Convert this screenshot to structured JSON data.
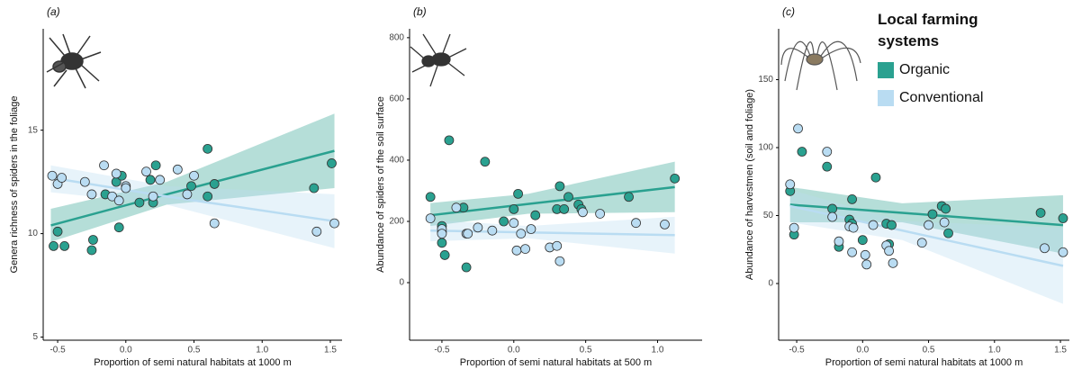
{
  "chart_data": [
    {
      "type": "scatter",
      "panel": "(a)",
      "ylabel": "Genera richness of spiders in the foliage",
      "xlabel": "Proportion of semi natural habitats at 1000 m",
      "xlim": [
        -0.606,
        1.586
      ],
      "ylim": [
        4.85,
        19.9
      ],
      "xticks": [
        -0.5,
        {
          "value": 0,
          "label": "0.0"
        },
        0.5,
        {
          "value": 1,
          "label": "1.0"
        },
        1.5
      ],
      "yticks": [
        5,
        10,
        15
      ],
      "series": [
        {
          "name": "Organic",
          "color": "#2aa190",
          "x": [
            -0.53,
            -0.5,
            -0.45,
            -0.25,
            -0.24,
            -0.15,
            -0.07,
            -0.05,
            -0.03,
            0.1,
            0.18,
            0.2,
            0.22,
            0.48,
            0.6,
            0.6,
            0.65,
            1.38,
            1.51
          ],
          "values": [
            9.4,
            10.1,
            9.4,
            9.2,
            9.7,
            11.9,
            12.5,
            10.3,
            12.8,
            11.5,
            12.6,
            11.5,
            13.3,
            12.3,
            14.1,
            11.8,
            12.4,
            12.2,
            13.4
          ],
          "fit_x": [
            -0.55,
            0.3,
            1.53
          ],
          "fit_values": [
            10.4,
            11.9,
            14.0
          ],
          "fit_lower": [
            9.6,
            11.4,
            12.2
          ],
          "fit_upper": [
            11.2,
            12.5,
            15.8
          ]
        },
        {
          "name": "Conventional",
          "color": "#b9dcf2",
          "x": [
            -0.54,
            -0.5,
            -0.47,
            -0.3,
            -0.25,
            -0.16,
            -0.1,
            -0.07,
            -0.05,
            0.0,
            0.0,
            0.15,
            0.2,
            0.25,
            0.38,
            0.45,
            0.5,
            0.65,
            1.4,
            1.53
          ],
          "values": [
            12.8,
            12.4,
            12.7,
            12.5,
            11.9,
            13.3,
            11.8,
            12.9,
            11.6,
            12.3,
            12.2,
            13.0,
            11.8,
            12.6,
            13.1,
            11.9,
            12.8,
            10.5,
            10.1,
            10.5
          ],
          "fit_x": [
            -0.55,
            0.3,
            1.53
          ],
          "fit_values": [
            12.7,
            11.8,
            10.6
          ],
          "fit_lower": [
            12.0,
            11.4,
            9.3
          ],
          "fit_upper": [
            13.3,
            12.3,
            11.9
          ]
        }
      ]
    },
    {
      "type": "scatter",
      "panel": "(b)",
      "ylabel": "Abundance of spiders of the soil surface",
      "xlabel": "Proportion of semi natural habitats at 500 m",
      "xlim": [
        -0.725,
        1.31
      ],
      "ylim": [
        -188,
        829
      ],
      "xticks": [
        -0.5,
        {
          "value": 0,
          "label": "0.0"
        },
        0.5,
        {
          "value": 1,
          "label": "1.0"
        }
      ],
      "yticks": [
        0,
        200,
        400,
        600,
        800
      ],
      "series": [
        {
          "name": "Organic",
          "color": "#2aa190",
          "x": [
            -0.58,
            -0.5,
            -0.5,
            -0.5,
            -0.48,
            -0.45,
            -0.35,
            -0.33,
            -0.2,
            -0.07,
            0.0,
            0.03,
            0.15,
            0.3,
            0.32,
            0.35,
            0.38,
            0.45,
            0.47,
            0.8,
            1.12
          ],
          "values": [
            280,
            185,
            165,
            130,
            90,
            465,
            245,
            50,
            395,
            200,
            240,
            290,
            220,
            240,
            315,
            240,
            280,
            255,
            240,
            280,
            340
          ],
          "fit_x": [
            -0.58,
            0.1,
            1.12
          ],
          "fit_values": [
            220,
            257,
            312
          ],
          "fit_lower": [
            185,
            225,
            230
          ],
          "fit_upper": [
            260,
            290,
            395
          ]
        },
        {
          "name": "Conventional",
          "color": "#b9dcf2",
          "x": [
            -0.58,
            -0.5,
            -0.5,
            -0.4,
            -0.33,
            -0.32,
            -0.25,
            -0.15,
            0.0,
            0.02,
            0.05,
            0.08,
            0.12,
            0.25,
            0.3,
            0.32,
            0.48,
            0.6,
            0.85,
            1.05
          ],
          "values": [
            210,
            175,
            160,
            245,
            160,
            160,
            180,
            170,
            195,
            105,
            160,
            110,
            175,
            115,
            120,
            70,
            230,
            225,
            195,
            190
          ],
          "fit_x": [
            -0.58,
            0.1,
            1.12
          ],
          "fit_values": [
            170,
            164,
            155
          ],
          "fit_lower": [
            135,
            145,
            95
          ],
          "fit_upper": [
            205,
            185,
            215
          ]
        }
      ]
    },
    {
      "type": "scatter",
      "panel": "(c)",
      "ylabel": "Abundance of harvestmen (soil and foliage)",
      "xlabel": "Proportion of semi natural habitats at 1000 m",
      "xlim": [
        -0.637,
        1.568
      ],
      "ylim": [
        -41.7,
        187.4
      ],
      "xticks": [
        -0.5,
        {
          "value": 0,
          "label": "0.0"
        },
        0.5,
        {
          "value": 1,
          "label": "1.0"
        },
        1.5
      ],
      "yticks": [
        0,
        50,
        100,
        150
      ],
      "legend_title": "Local farming systems",
      "series": [
        {
          "name": "Organic",
          "color": "#2aa190",
          "x": [
            -0.55,
            -0.52,
            -0.46,
            -0.27,
            -0.23,
            -0.18,
            -0.1,
            -0.08,
            -0.08,
            0.0,
            0.1,
            0.18,
            0.2,
            0.22,
            0.53,
            0.6,
            0.63,
            0.65,
            1.35,
            1.52
          ],
          "values": [
            68,
            36,
            97,
            86,
            55,
            27,
            47,
            44,
            62,
            32,
            78,
            44,
            29,
            43,
            51,
            57,
            55,
            37,
            52,
            48
          ],
          "fit_x": [
            -0.55,
            0.3,
            1.52
          ],
          "fit_values": [
            58,
            52,
            43
          ],
          "fit_lower": [
            45,
            45,
            22
          ],
          "fit_upper": [
            71,
            59,
            65
          ]
        },
        {
          "name": "Conventional",
          "color": "#b9dcf2",
          "x": [
            -0.55,
            -0.52,
            -0.49,
            -0.27,
            -0.23,
            -0.18,
            -0.1,
            -0.08,
            -0.07,
            0.02,
            0.03,
            0.08,
            0.18,
            0.2,
            0.23,
            0.45,
            0.5,
            0.62,
            1.38,
            1.52
          ],
          "values": [
            73,
            41,
            114,
            97,
            49,
            31,
            42,
            23,
            41,
            21,
            14,
            43,
            28,
            24,
            15,
            30,
            43,
            45,
            26,
            23
          ],
          "fit_x": [
            -0.55,
            0.3,
            1.52
          ],
          "fit_values": [
            57,
            39,
            13
          ],
          "fit_lower": [
            45,
            32,
            -15
          ],
          "fit_upper": [
            69,
            46,
            41
          ]
        }
      ]
    }
  ]
}
